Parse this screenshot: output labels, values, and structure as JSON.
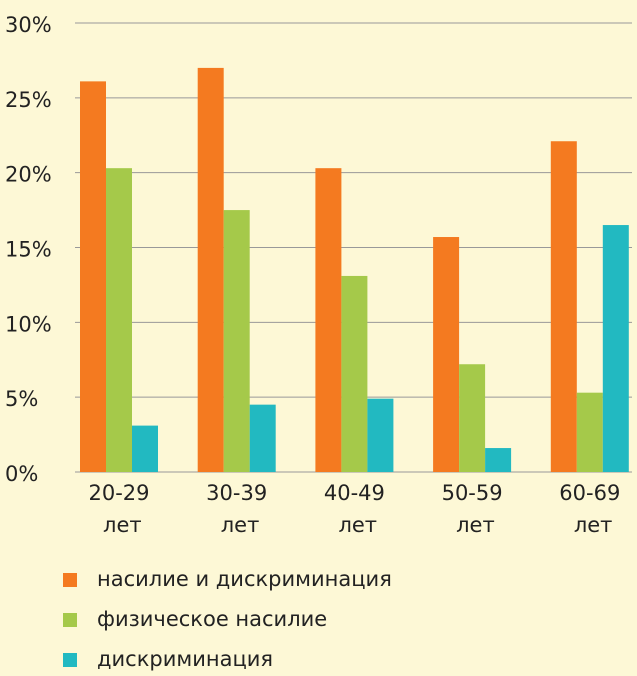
{
  "chart_data": {
    "type": "bar",
    "categories": [
      "20-29 лет",
      "30-39 лет",
      "40-49 лет",
      "50-59 лет",
      "60-69 лет"
    ],
    "series": [
      {
        "name": "насилие и дискриминация",
        "color": "#f47a20",
        "values": [
          26.1,
          27.0,
          20.3,
          15.7,
          22.1
        ]
      },
      {
        "name": "физическое насилие",
        "color": "#a5c94a",
        "values": [
          20.3,
          17.5,
          13.1,
          7.2,
          5.3
        ]
      },
      {
        "name": "дискриминация",
        "color": "#22b9c1",
        "values": [
          3.1,
          4.5,
          4.9,
          1.6,
          16.5
        ]
      }
    ],
    "ylim": [
      0,
      30
    ],
    "yticks": [
      {
        "value": 0,
        "label": "0%"
      },
      {
        "value": 5,
        "label": "5%"
      },
      {
        "value": 10,
        "label": "10%"
      },
      {
        "value": 15,
        "label": "15%"
      },
      {
        "value": 20,
        "label": "20%"
      },
      {
        "value": 25,
        "label": "25%"
      },
      {
        "value": 30,
        "label": "30%"
      }
    ],
    "grid": true,
    "legend": "bottom"
  }
}
